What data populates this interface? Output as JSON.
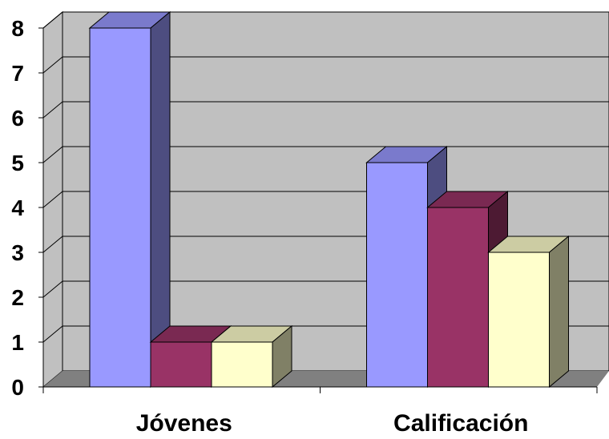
{
  "chart_data": {
    "type": "bar",
    "categories": [
      "Jóvenes",
      "Calificación"
    ],
    "series": [
      {
        "values": [
          8,
          5
        ],
        "color": "#9999ff",
        "side_color": "#4d4d80",
        "top_color": "#7a7acc"
      },
      {
        "values": [
          1,
          4
        ],
        "color": "#993366",
        "side_color": "#4d1a33",
        "top_color": "#7a2952"
      },
      {
        "values": [
          1,
          3
        ],
        "color": "#ffffcc",
        "side_color": "#808066",
        "top_color": "#cccca3"
      }
    ],
    "yticks": [
      "0",
      "1",
      "2",
      "3",
      "4",
      "5",
      "6",
      "7",
      "8"
    ],
    "ylim": [
      0,
      8
    ],
    "grid": true,
    "legend": "none",
    "title": "",
    "xlabel": "",
    "ylabel": "",
    "colors": {
      "wall": "#c0c0c0",
      "floor": "#808080",
      "gridline": "#000000"
    }
  }
}
